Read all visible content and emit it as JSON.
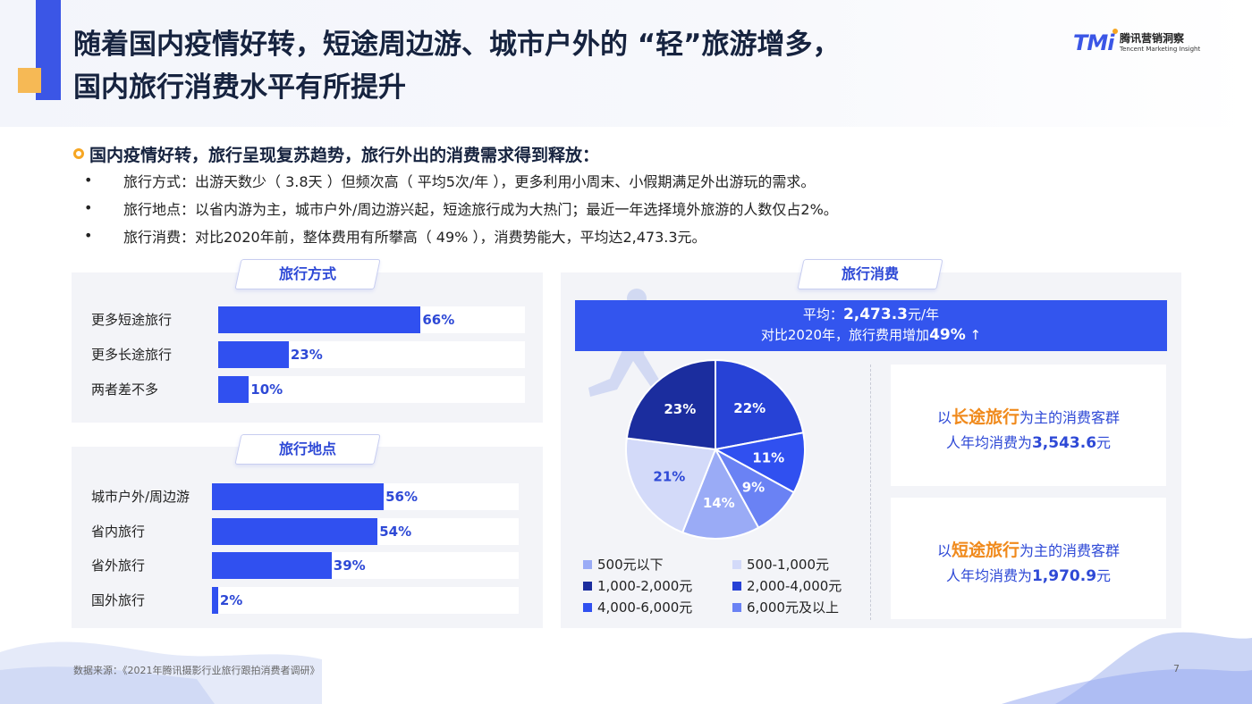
{
  "header": {
    "title_line1": "随着国内疫情好转，短途周边游、城市户外的 “轻”旅游增多，",
    "title_line2": "国内旅行消费水平有所提升",
    "logo_mark": "TMi",
    "logo_cn": "腾讯营销洞察",
    "logo_en": "Tencent Marketing Insight"
  },
  "intro": {
    "heading": "国内疫情好转，旅行呈现复苏趋势，旅行外出的消费需求得到释放：",
    "bullets": [
      "旅行方式：出游天数少（ 3.8天 ）但频次高（ 平均5次/年 ），更多利用小周末、小假期满足外出游玩的需求。",
      "旅行地点：以省内游为主，城市户外/周边游兴起，短途旅行成为大热门；最近一年选择境外旅游的人数仅占2%。",
      "旅行消费：对比2020年前，整体费用有所攀高（ 49% ），消费势能大，平均达2,473.3元。"
    ]
  },
  "travel_mode": {
    "tab": "旅行方式"
  },
  "travel_place": {
    "tab": "旅行地点"
  },
  "spend": {
    "tab": "旅行消费",
    "avg_prefix": "平均：",
    "avg_value": "2,473.3",
    "avg_suffix": "元/年",
    "compare_prefix": "对比2020年，旅行费用增加",
    "compare_value": "49%",
    "arrow": "↑",
    "long_prefix": "以",
    "long_hl": "长途旅行",
    "long_suffix": "为主的消费客群",
    "long_line2_prefix": "人年均消费为",
    "long_value": "3,543.6",
    "long_unit": "元",
    "short_prefix": "以",
    "short_hl": "短途旅行",
    "short_suffix": "为主的消费客群",
    "short_line2_prefix": "人年均消费为",
    "short_value": "1,970.9",
    "short_unit": "元"
  },
  "chart_data": [
    {
      "type": "bar",
      "orientation": "horizontal",
      "categories": [
        "更多短途旅行",
        "更多长途旅行",
        "两者差不多"
      ],
      "values": [
        66,
        23,
        10
      ],
      "value_labels": [
        "66%",
        "23%",
        "10%"
      ],
      "xlim": [
        0,
        100
      ],
      "title": "",
      "color": "#3050f0"
    },
    {
      "type": "bar",
      "orientation": "horizontal",
      "categories": [
        "城市户外/周边游",
        "省内旅行",
        "省外旅行",
        "国外旅行"
      ],
      "values": [
        56,
        54,
        39,
        2
      ],
      "value_labels": [
        "56%",
        "54%",
        "39%",
        "2%"
      ],
      "xlim": [
        0,
        100
      ],
      "title": "",
      "color": "#3050f0"
    },
    {
      "type": "pie",
      "title": "",
      "slices": [
        {
          "label": "2,000-4,000元",
          "value": 22,
          "text": "22%",
          "color": "#2742d6"
        },
        {
          "label": "4,000-6,000元",
          "value": 11,
          "text": "11%",
          "color": "#3050f0"
        },
        {
          "label": "6,000元及以上",
          "value": 9,
          "text": "9%",
          "color": "#6a82f4"
        },
        {
          "label": "500元以下",
          "value": 14,
          "text": "14%",
          "color": "#9aabf6"
        },
        {
          "label": "500-1,000元",
          "value": 21,
          "text": "21%",
          "color": "#d3daf9"
        },
        {
          "label": "1,000-2,000元",
          "value": 23,
          "text": "23%",
          "color": "#1b2d9e"
        }
      ],
      "legend": [
        "500元以下",
        "500-1,000元",
        "1,000-2,000元",
        "2,000-4,000元",
        "4,000-6,000元",
        "6,000元及以上"
      ],
      "legend_placement": "bottom"
    }
  ],
  "footer": {
    "source": "数据来源：《2021年腾讯摄影行业旅行跟拍消费者调研》",
    "page": "7"
  }
}
